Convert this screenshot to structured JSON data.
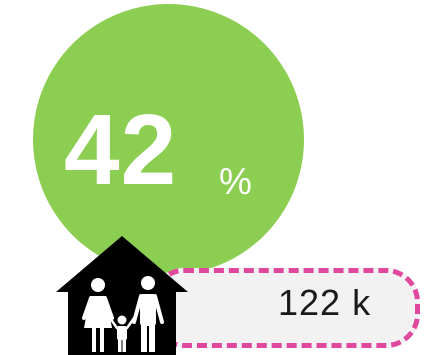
{
  "stat": {
    "value": "42",
    "unit": "%",
    "fraction": 0.42
  },
  "households": {
    "count": "122 k",
    "icon": "family-house-icon"
  },
  "colors": {
    "circle": "#8cce52",
    "text_on_circle": "#ffffff",
    "house": "#000000",
    "figures": "#ffffff",
    "pill_border": "#e0489e",
    "pill_fill": "#f2f2f2",
    "count_text": "#1a1a1a"
  }
}
